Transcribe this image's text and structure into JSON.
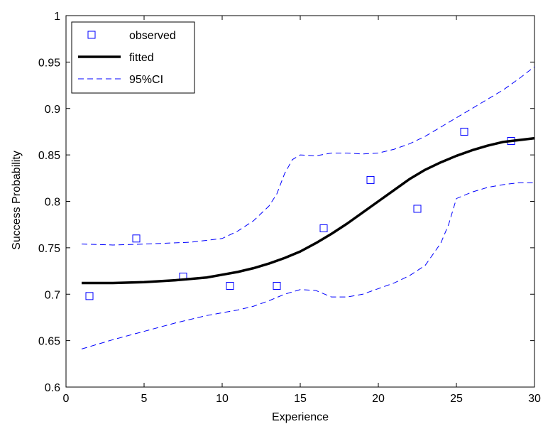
{
  "chart_data": {
    "type": "line",
    "title": "",
    "xlabel": "Experience",
    "ylabel": "Success Probability",
    "xlim": [
      0,
      30
    ],
    "ylim": [
      0.6,
      1.0
    ],
    "xticks": [
      0,
      5,
      10,
      15,
      20,
      25,
      30
    ],
    "yticks": [
      0.6,
      0.65,
      0.7,
      0.75,
      0.8,
      0.85,
      0.9,
      0.95,
      1.0
    ],
    "xtick_labels": [
      "0",
      "5",
      "10",
      "15",
      "20",
      "25",
      "30"
    ],
    "ytick_labels": [
      "0.6",
      "0.65",
      "0.7",
      "0.75",
      "0.8",
      "0.85",
      "0.9",
      "0.95",
      "1"
    ],
    "grid": false,
    "legend_position": "top-left",
    "series": [
      {
        "name": "observed",
        "style": "markers",
        "marker": "square",
        "color": "#0000ff",
        "x": [
          1.5,
          4.5,
          7.5,
          10.5,
          13.5,
          16.5,
          19.5,
          22.5,
          25.5,
          28.5
        ],
        "y": [
          0.698,
          0.76,
          0.719,
          0.709,
          0.709,
          0.771,
          0.823,
          0.792,
          0.875,
          0.865
        ]
      },
      {
        "name": "fitted",
        "style": "solid",
        "color": "#000000",
        "x": [
          1,
          3,
          5,
          7,
          9,
          10,
          11,
          12,
          13,
          14,
          15,
          16,
          17,
          18,
          19,
          20,
          21,
          22,
          23,
          24,
          25,
          26,
          27,
          28,
          29,
          30
        ],
        "y": [
          0.712,
          0.712,
          0.713,
          0.715,
          0.718,
          0.721,
          0.724,
          0.728,
          0.733,
          0.739,
          0.746,
          0.755,
          0.765,
          0.776,
          0.788,
          0.8,
          0.812,
          0.824,
          0.834,
          0.842,
          0.849,
          0.855,
          0.86,
          0.864,
          0.866,
          0.868
        ]
      },
      {
        "name": "95%CI",
        "style": "dashed",
        "color": "#0000ff",
        "x": [
          1,
          3,
          5,
          8,
          10,
          11,
          12,
          13,
          13.5,
          14,
          14.5,
          15,
          16,
          17,
          18,
          19,
          20,
          21,
          22,
          23,
          24,
          25,
          26,
          27,
          28,
          29,
          30
        ],
        "y": [
          0.754,
          0.753,
          0.754,
          0.756,
          0.76,
          0.768,
          0.779,
          0.795,
          0.808,
          0.83,
          0.845,
          0.85,
          0.849,
          0.852,
          0.852,
          0.851,
          0.852,
          0.856,
          0.862,
          0.87,
          0.88,
          0.89,
          0.9,
          0.91,
          0.92,
          0.932,
          0.945
        ]
      },
      {
        "name": "",
        "style": "dashed",
        "color": "#0000ff",
        "x": [
          1,
          3,
          5,
          7,
          9,
          10,
          11,
          12,
          13,
          14,
          15,
          16,
          17,
          18,
          19,
          20,
          21,
          22,
          23,
          24,
          24.5,
          25,
          26,
          27,
          28,
          29,
          30
        ],
        "y": [
          0.641,
          0.651,
          0.66,
          0.669,
          0.677,
          0.68,
          0.683,
          0.687,
          0.693,
          0.7,
          0.705,
          0.704,
          0.697,
          0.697,
          0.7,
          0.706,
          0.712,
          0.72,
          0.731,
          0.755,
          0.775,
          0.803,
          0.81,
          0.815,
          0.818,
          0.82,
          0.82
        ]
      }
    ]
  }
}
